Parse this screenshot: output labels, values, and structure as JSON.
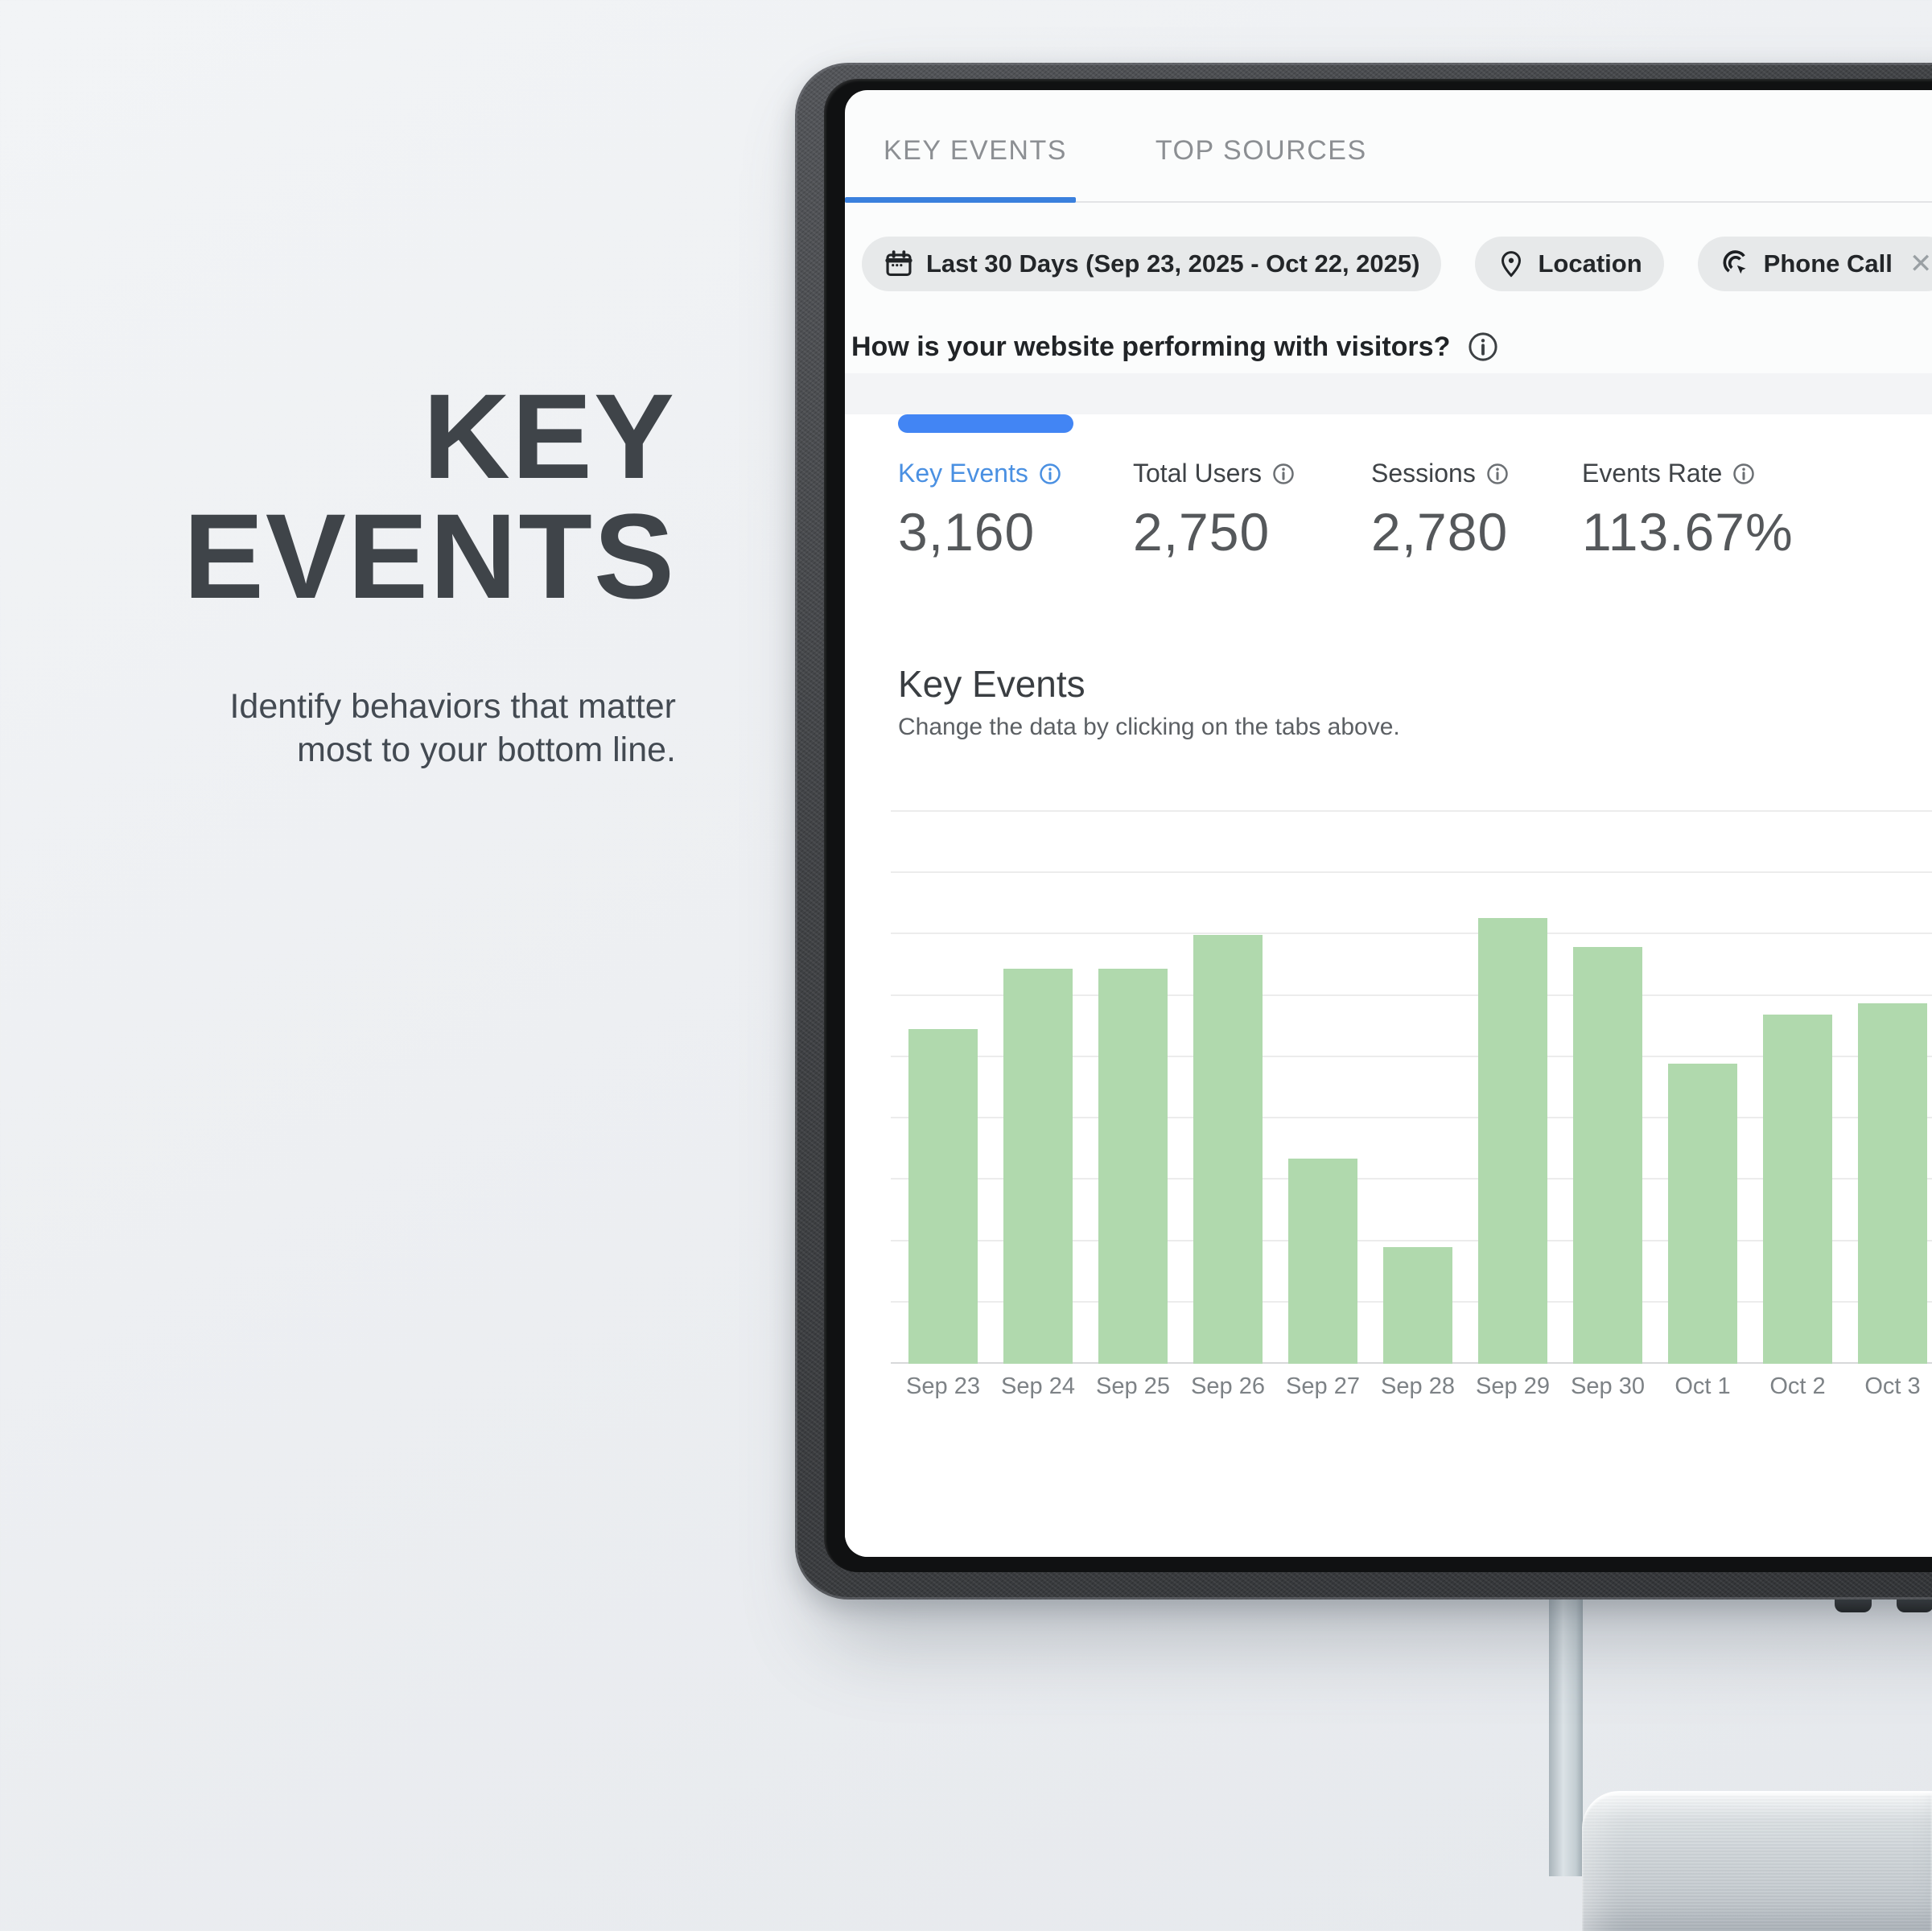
{
  "hero": {
    "title_line1": "KEY",
    "title_line2": "EVENTS",
    "subtitle_line1": "Identify behaviors that matter",
    "subtitle_line2": "most to your bottom line."
  },
  "screen": {
    "tabs": [
      {
        "label": "KEY EVENTS",
        "active": true
      },
      {
        "label": "TOP SOURCES",
        "active": false
      }
    ],
    "filters": {
      "date_chip": {
        "icon": "calendar-icon",
        "label": "Last 30 Days (Sep 23, 2025 - Oct 22, 2025)"
      },
      "location_chip": {
        "icon": "location-pin-icon",
        "label": "Location"
      },
      "phone_chip": {
        "icon": "tap-click-icon",
        "label": "Phone Call",
        "close": "✕"
      }
    },
    "question": "How is your website performing with visitors?",
    "metrics": [
      {
        "label": "Key Events",
        "value": "3,160",
        "selected": true
      },
      {
        "label": "Total Users",
        "value": "2,750",
        "selected": false
      },
      {
        "label": "Sessions",
        "value": "2,780",
        "selected": false
      },
      {
        "label": "Events Rate",
        "value": "113.67%",
        "selected": false
      }
    ],
    "section": {
      "title": "Key Events",
      "subtitle": "Change the data by clicking on the tabs above."
    }
  },
  "chart_data": {
    "type": "bar",
    "title": "Key Events",
    "subtitle": "Change the data by clicking on the tabs above.",
    "categories": [
      "Sep 23",
      "Sep 24",
      "Sep 25",
      "Sep 26",
      "Sep 27",
      "Sep 28",
      "Sep 29",
      "Sep 30",
      "Oct 1",
      "Oct 2",
      "Oct 3"
    ],
    "values": [
      60.6,
      71.6,
      71.6,
      77.7,
      37.2,
      21.1,
      80.8,
      75.5,
      54.4,
      63.3,
      65.3
    ],
    "unit": "percent_of_plot_height (y-axis has no labels; tallest bar = Sep 29)",
    "xlabel": "",
    "ylabel": "",
    "grid": true,
    "n_gridlines": 10,
    "legend": false,
    "bar_color": "#b0d9ad",
    "grid_color": "#ececec",
    "note": "date range continues to Oct 22 but chart is cropped at right edge of screen"
  },
  "colors": {
    "accent_blue": "#3a80dd",
    "indicator_blue": "#4285f4",
    "metric_blue": "#4a90e2",
    "bar_green": "#b0d9ad",
    "chip_bg": "#e7e9ea",
    "grid_color": "#ececec",
    "hero_text": "#3f4449",
    "bezel_dark": "#3a3c3f",
    "page_bg": "#edeff2"
  }
}
